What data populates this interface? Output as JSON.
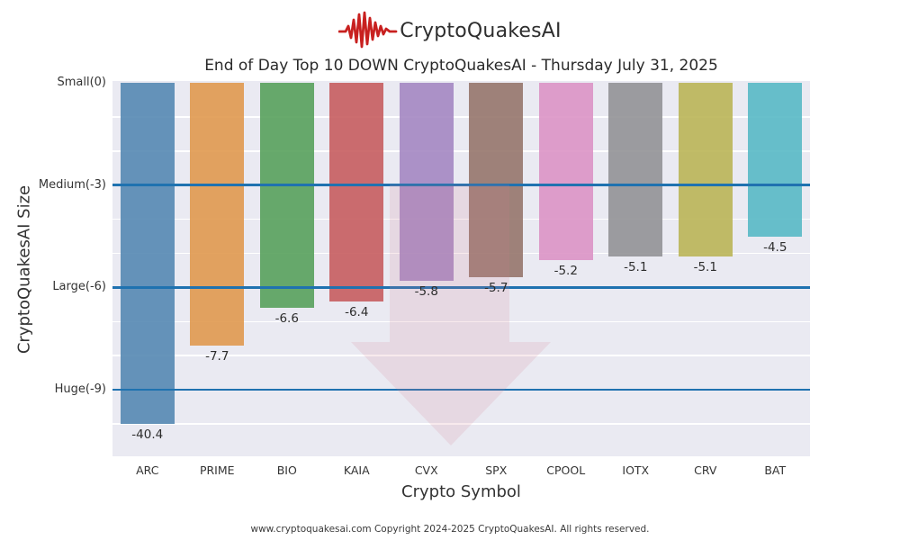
{
  "logo": {
    "text": "CryptoQuakesAI",
    "icon": "seismograph-waveform-icon",
    "icon_color": "#c8201f",
    "text_color": "#2e2e2e"
  },
  "title": "End of Day Top 10 DOWN CryptoQuakesAI - Thursday July 31, 2025",
  "footer": "www.cryptoquakesai.com Copyright 2024-2025 CryptoQuakesAI. All rights reserved.",
  "chart_data": {
    "type": "bar",
    "title": "End of Day Top 10 DOWN CryptoQuakesAI - Thursday July 31, 2025",
    "xlabel": "Crypto Symbol",
    "ylabel": "CryptoQuakesAI Size",
    "categories": [
      "ARC",
      "PRIME",
      "BIO",
      "KAIA",
      "CVX",
      "SPX",
      "CPOOL",
      "IOTX",
      "CRV",
      "BAT"
    ],
    "values": [
      -40.4,
      -7.7,
      -6.6,
      -6.4,
      -5.8,
      -5.7,
      -5.2,
      -5.1,
      -5.1,
      -4.5
    ],
    "value_labels": [
      "-40.4",
      "-7.7",
      "-6.6",
      "-6.4",
      "-5.8",
      "-5.7",
      "-5.2",
      "-5.1",
      "-5.1",
      "-4.5"
    ],
    "bar_colors": [
      "#5588b2",
      "#e0994f",
      "#58a15c",
      "#c65d5f",
      "#a487c2",
      "#96766c",
      "#db93c5",
      "#929296",
      "#bab557",
      "#58b9c5"
    ],
    "yticks": [
      {
        "label": "Small(0)",
        "value": 0
      },
      {
        "label": "Medium(-3)",
        "value": -3
      },
      {
        "label": "Large(-6)",
        "value": -6
      },
      {
        "label": "Huge(-9)",
        "value": -9
      }
    ],
    "threshold_lines": {
      "values": [
        -3,
        -6,
        -9
      ],
      "color": "#1f72b0"
    },
    "ylim": [
      0,
      -10.98
    ],
    "bar_display_clamp": -10,
    "grid": "horizontal white gridlines every 1 unit",
    "plot_bg_color": "#eaeaf2",
    "legend": "none",
    "watermark": "large translucent pink down-arrow overlay in plot center"
  }
}
